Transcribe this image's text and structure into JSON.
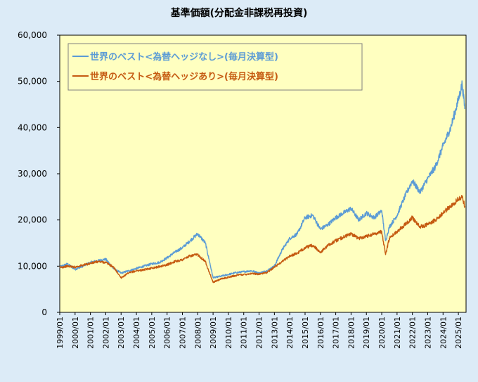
{
  "chart_data": {
    "type": "line",
    "title": "基準価額(分配金非課税再投資)",
    "ylim": [
      0,
      60000
    ],
    "y_ticks": [
      "0",
      "10,000",
      "20,000",
      "30,000",
      "40,000",
      "50,000",
      "60,000"
    ],
    "x_ticks": [
      "1999/01",
      "2000/01",
      "2001/01",
      "2002/01",
      "2003/01",
      "2004/01",
      "2005/01",
      "2006/01",
      "2007/01",
      "2008/01",
      "2009/01",
      "2010/01",
      "2011/01",
      "2012/01",
      "2013/01",
      "2014/01",
      "2015/01",
      "2016/01",
      "2017/01",
      "2018/01",
      "2019/01",
      "2020/01",
      "2021/01",
      "2022/01",
      "2023/01",
      "2024/01",
      "2025/01"
    ],
    "grid": false,
    "legend_position": "top-left",
    "x": [
      "1999/01",
      "1999/07",
      "2000/01",
      "2000/07",
      "2001/01",
      "2001/07",
      "2002/01",
      "2002/07",
      "2003/01",
      "2003/07",
      "2004/01",
      "2004/07",
      "2005/01",
      "2005/07",
      "2006/01",
      "2006/07",
      "2007/01",
      "2007/07",
      "2008/01",
      "2008/07",
      "2009/01",
      "2009/07",
      "2010/01",
      "2010/07",
      "2011/01",
      "2011/07",
      "2012/01",
      "2012/07",
      "2013/01",
      "2013/07",
      "2014/01",
      "2014/07",
      "2015/01",
      "2015/07",
      "2016/01",
      "2016/07",
      "2017/01",
      "2017/07",
      "2018/01",
      "2018/07",
      "2019/01",
      "2019/07",
      "2020/01",
      "2020/04",
      "2020/07",
      "2021/01",
      "2021/07",
      "2022/01",
      "2022/07",
      "2023/01",
      "2023/07",
      "2024/01",
      "2024/07",
      "2025/01",
      "2025/04",
      "2025/06"
    ],
    "series": [
      {
        "name": "世界のベスト<為替ヘッジなし>(毎月決算型)",
        "color": "#5b9bd5",
        "values": [
          9800,
          10500,
          9300,
          10000,
          10800,
          11200,
          11500,
          9500,
          8500,
          9000,
          9500,
          10000,
          10500,
          10800,
          11800,
          13000,
          14000,
          15500,
          17000,
          15000,
          7500,
          7800,
          8200,
          8600,
          8800,
          9000,
          8500,
          9000,
          10000,
          13500,
          16000,
          17000,
          20500,
          21000,
          18000,
          19000,
          20500,
          21500,
          22500,
          20000,
          21500,
          20500,
          22000,
          15500,
          18500,
          21000,
          25000,
          28500,
          26000,
          29000,
          31500,
          36000,
          40000,
          46000,
          49500,
          44000
        ]
      },
      {
        "name": "世界のベスト<為替ヘッジあり>(毎月決算型)",
        "color": "#c55a11",
        "values": [
          9700,
          10000,
          9800,
          10200,
          10600,
          11000,
          10800,
          9800,
          7500,
          8500,
          9000,
          9200,
          9600,
          9900,
          10300,
          11000,
          11400,
          12200,
          12500,
          11000,
          6500,
          7200,
          7600,
          8000,
          8200,
          8400,
          8300,
          8600,
          9800,
          11000,
          12200,
          12800,
          14000,
          14500,
          13000,
          14500,
          15500,
          16300,
          17000,
          16000,
          16500,
          17000,
          17500,
          12500,
          16000,
          17500,
          19000,
          20500,
          18500,
          19000,
          20000,
          21500,
          23000,
          24500,
          25000,
          23000
        ]
      }
    ]
  }
}
